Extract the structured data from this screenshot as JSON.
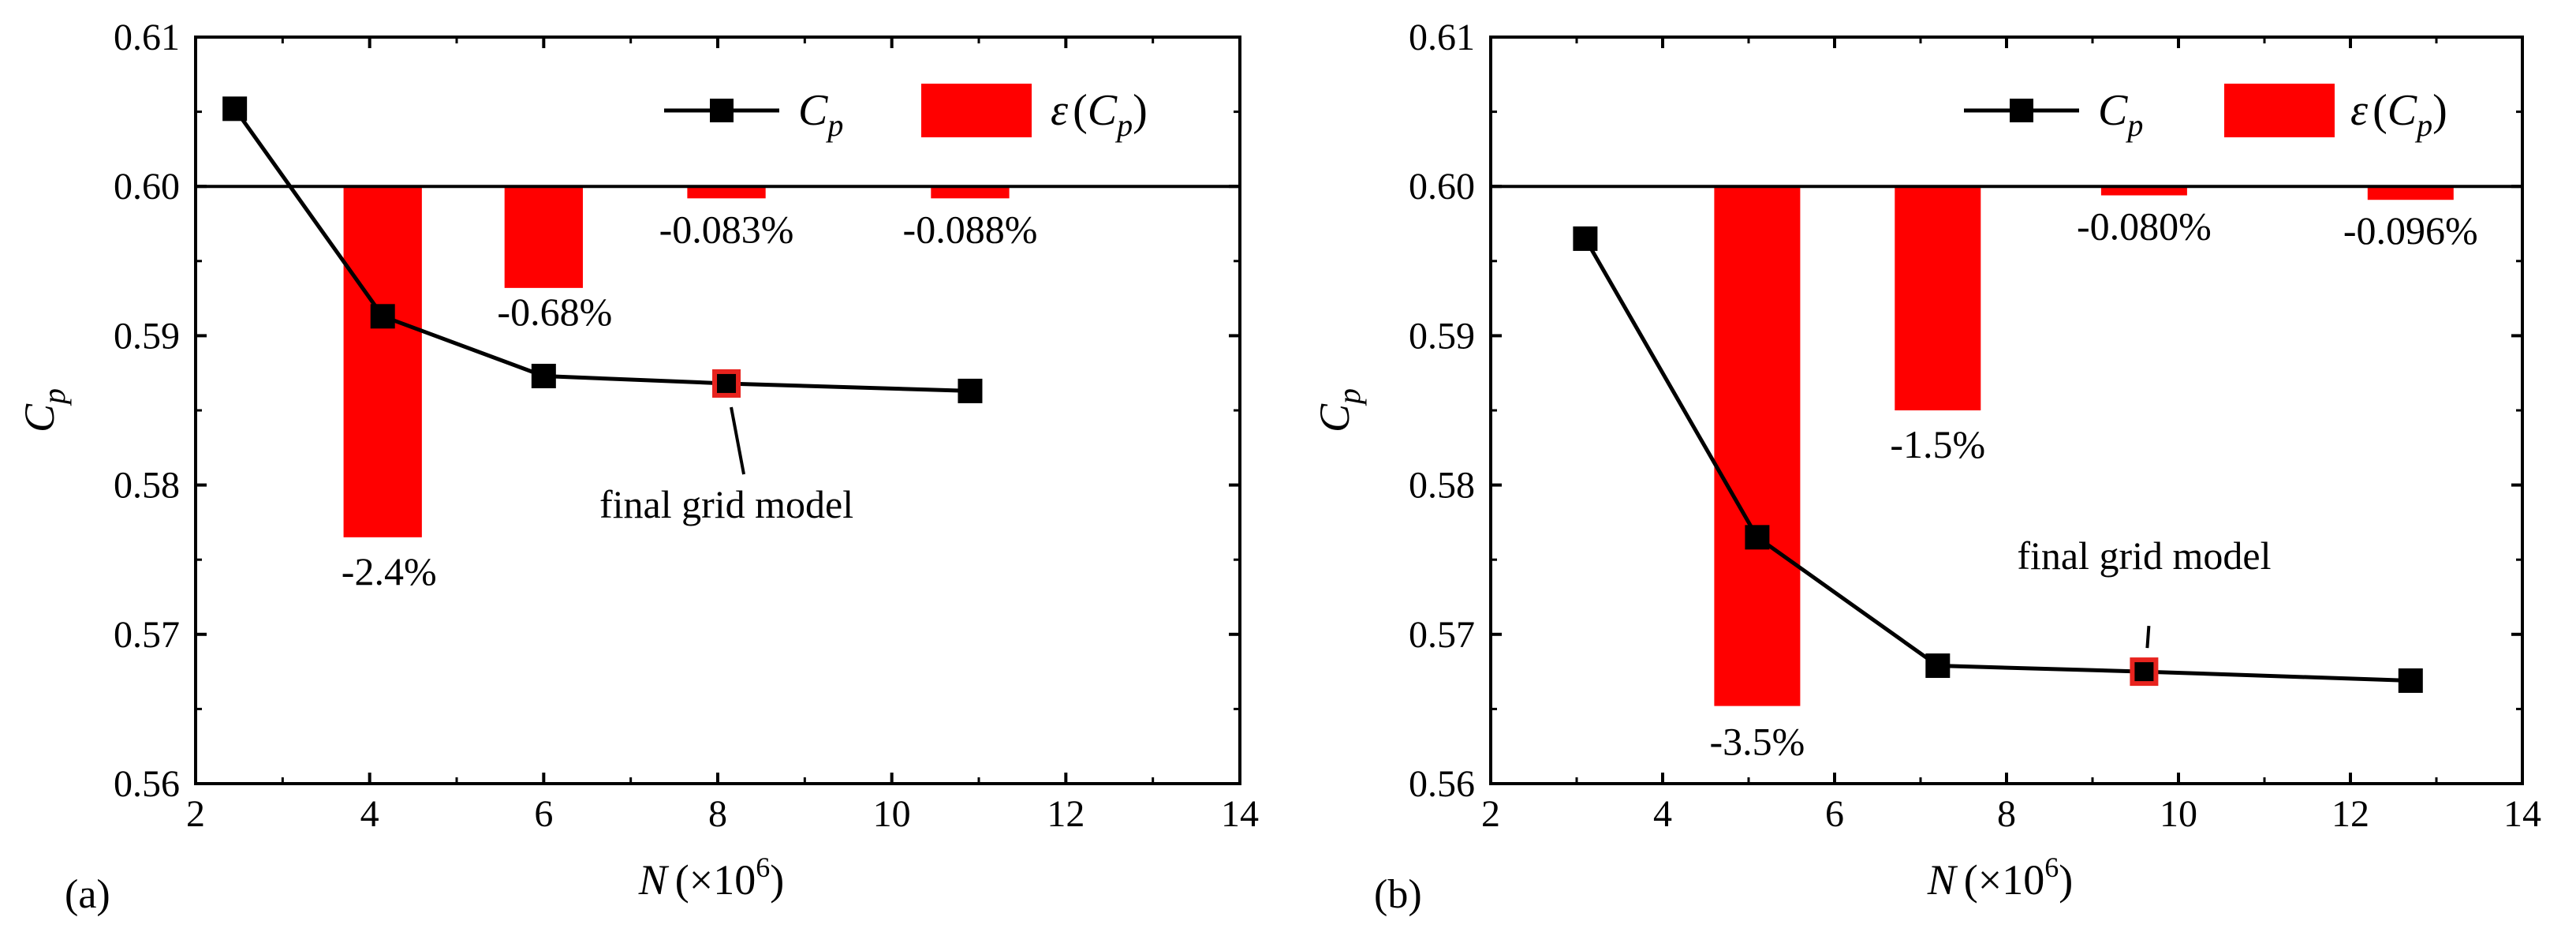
{
  "chart_data": [
    {
      "type": "line+bar",
      "panel_label": "(a)",
      "xlabel": {
        "var": "N",
        "unit_prefix": "(×10",
        "unit_exp": "6",
        "unit_suffix": ")"
      },
      "ylabel": {
        "base": "C",
        "sub": "p"
      },
      "xlim": [
        2,
        14
      ],
      "ylim": [
        0.56,
        0.61
      ],
      "xticks": [
        "2",
        "4",
        "6",
        "8",
        "10",
        "12",
        "14"
      ],
      "yticks": [
        "0.56",
        "0.57",
        "0.58",
        "0.59",
        "0.60",
        "0.61"
      ],
      "reference_line": 0.6,
      "line_series": {
        "name": "Cp",
        "x": [
          2.45,
          4.15,
          6.0,
          8.1,
          10.9
        ],
        "y": [
          0.6052,
          0.5913,
          0.5873,
          0.5868,
          0.5863
        ],
        "highlight_index": 3
      },
      "bar_series": {
        "name": "ε(Cp)",
        "x": [
          4.15,
          6.0,
          8.1,
          10.9
        ],
        "width": 0.9,
        "bottom": [
          0.5765,
          0.5932,
          0.5992,
          0.5992
        ],
        "labels": [
          "-2.4%",
          "-0.68%",
          "-0.083%",
          "-0.088%"
        ]
      },
      "annotation": {
        "text": "final grid model"
      },
      "legend": {
        "position": "top-right",
        "line_label": {
          "base": "C",
          "sub": "p"
        },
        "bar_label": {
          "eps": "ε",
          "open": "(",
          "base": "C",
          "sub": "p",
          "close": ")"
        }
      }
    },
    {
      "type": "line+bar",
      "panel_label": "(b)",
      "xlabel": {
        "var": "N",
        "unit_prefix": "(×10",
        "unit_exp": "6",
        "unit_suffix": ")"
      },
      "ylabel": {
        "base": "C",
        "sub": "p"
      },
      "xlim": [
        2,
        14
      ],
      "ylim": [
        0.56,
        0.61
      ],
      "xticks": [
        "2",
        "4",
        "6",
        "8",
        "10",
        "12",
        "14"
      ],
      "yticks": [
        "0.56",
        "0.57",
        "0.58",
        "0.59",
        "0.60",
        "0.61"
      ],
      "reference_line": 0.6,
      "line_series": {
        "name": "Cp",
        "x": [
          3.1,
          5.1,
          7.2,
          9.6,
          12.7
        ],
        "y": [
          0.5965,
          0.5765,
          0.5679,
          0.5675,
          0.5669
        ],
        "highlight_index": 3
      },
      "bar_series": {
        "name": "ε(Cp)",
        "x": [
          5.1,
          7.2,
          9.6,
          12.7
        ],
        "width": 1.0,
        "bottom": [
          0.5652,
          0.585,
          0.5994,
          0.5991
        ],
        "labels": [
          "-3.5%",
          "-1.5%",
          "-0.080%",
          "-0.096%"
        ]
      },
      "annotation": {
        "text": "final grid model"
      },
      "legend": {
        "position": "top-right",
        "line_label": {
          "base": "C",
          "sub": "p"
        },
        "bar_label": {
          "eps": "ε",
          "open": "(",
          "base": "C",
          "sub": "p",
          "close": ")"
        }
      }
    }
  ],
  "colors": {
    "bar": "#ff0000",
    "line": "#000000",
    "marker": "#000000",
    "highlight_edge": "#e8231e",
    "axis": "#000000"
  }
}
